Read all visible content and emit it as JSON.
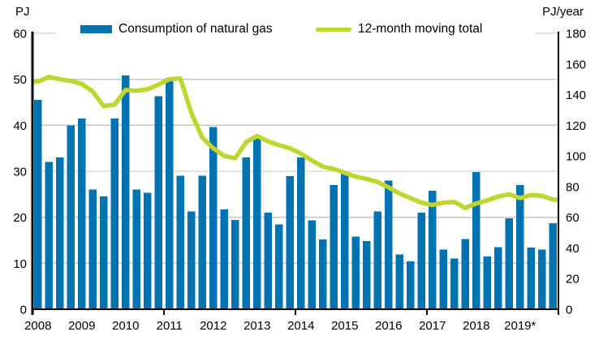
{
  "axes": {
    "left_title": "PJ",
    "right_title": "PJ/year"
  },
  "legend": {
    "bars_label": "Consumption of natural gas",
    "line_label": "12-month moving total"
  },
  "colors": {
    "bar": "#0073b0",
    "line": "#c0d530",
    "grid": "#c7c7c7",
    "axis": "#000000"
  },
  "chart_data": {
    "type": "combo-bar-line",
    "x_categories": [
      "2008",
      "2009",
      "2010",
      "2011",
      "2012",
      "2013",
      "2014",
      "2015",
      "2016",
      "2017",
      "2018",
      "2019*"
    ],
    "points_per_category": 4,
    "frequency": "quarterly",
    "series": [
      {
        "name": "Consumption of natural gas",
        "type": "bar",
        "axis": "left",
        "unit": "PJ",
        "values": [
          45.5,
          32,
          33,
          40,
          41.5,
          26,
          24.5,
          41.5,
          50.8,
          26,
          25.3,
          46.3,
          50.3,
          29,
          21.3,
          29,
          39.6,
          21.7,
          19.4,
          33,
          37.2,
          21,
          18.4,
          28.9,
          33,
          19.3,
          15.2,
          27,
          29.5,
          15.8,
          14.8,
          21.3,
          28,
          11.9,
          10.4,
          21,
          25.8,
          13,
          11,
          15.3,
          29.8,
          11.5,
          13.5,
          19.8,
          27,
          13.4,
          13,
          18.7
        ]
      },
      {
        "name": "12-month moving total",
        "type": "line",
        "axis": "right",
        "unit": "PJ/year",
        "values": [
          148.5,
          151.5,
          150,
          149,
          147,
          142,
          132.5,
          133.5,
          143,
          142.5,
          143.5,
          146.5,
          150,
          150.5,
          128,
          112,
          105,
          100,
          98.5,
          109,
          113,
          109.5,
          107,
          105,
          101.5,
          97,
          93,
          91.5,
          89,
          86.5,
          85,
          83,
          79.5,
          75.5,
          72.5,
          69.5,
          68,
          69.5,
          70,
          66,
          69,
          71,
          73.5,
          75,
          72.5,
          74.5,
          74,
          71.5
        ]
      }
    ],
    "left_axis": {
      "title": "PJ",
      "min": 0,
      "max": 60,
      "ticks": [
        0,
        10,
        20,
        30,
        40,
        50,
        60
      ]
    },
    "right_axis": {
      "title": "PJ/year",
      "min": 0,
      "max": 180,
      "ticks": [
        0,
        20,
        40,
        60,
        80,
        100,
        120,
        140,
        160,
        180
      ]
    },
    "x_axis_tick_years": [
      "2008",
      "2011",
      "2014",
      "2017"
    ],
    "grid": true,
    "legend_position": "top"
  }
}
